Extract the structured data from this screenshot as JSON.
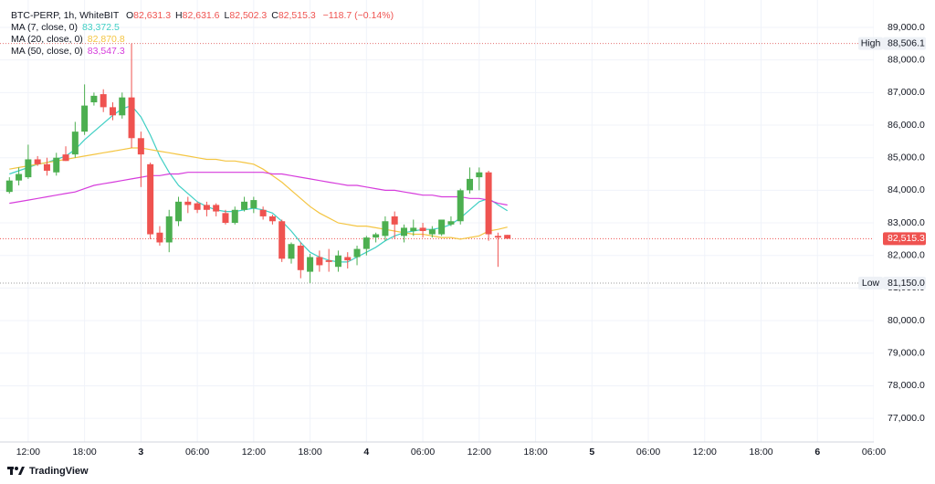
{
  "chart_data": {
    "type": "candlestick",
    "title": "BTC-PERP, 1h, WhiteBIT",
    "ohlc_legend": [
      {
        "label": "O",
        "value": "82,631.3"
      },
      {
        "label": "H",
        "value": "82,631.6"
      },
      {
        "label": "L",
        "value": "82,502.3"
      },
      {
        "label": "C",
        "value": "82,515.3"
      }
    ],
    "change": "−118.7 (−0.14%)",
    "up_color": "#4caf50",
    "down_color": "#ef5350",
    "x": [
      10,
      11,
      12,
      13,
      14,
      15,
      16,
      17,
      18,
      19,
      20,
      21,
      22,
      23,
      24,
      25,
      26,
      27,
      28,
      29,
      30,
      31,
      32,
      33,
      34,
      35,
      36,
      37,
      38,
      39,
      40,
      41,
      42,
      43,
      44,
      45,
      46,
      47,
      48,
      49,
      50,
      51,
      52,
      53,
      54,
      55,
      56,
      57,
      58,
      59,
      60,
      61,
      62,
      63
    ],
    "open": [
      83950,
      84300,
      84400,
      84950,
      84800,
      84550,
      85100,
      85100,
      85800,
      86700,
      86950,
      86550,
      86300,
      86850,
      85600,
      84800,
      82700,
      82400,
      83050,
      83650,
      83600,
      83550,
      83550,
      83300,
      83000,
      83400,
      83450,
      83400,
      83200,
      83050,
      81900,
      82300,
      81500,
      81950,
      81850,
      81650,
      81950,
      81950,
      82200,
      82550,
      82600,
      83200,
      82600,
      82750,
      82850,
      82650,
      82650,
      82950,
      83050,
      84000,
      84400,
      84550,
      82600,
      82631.3
    ],
    "high": [
      84400,
      84700,
      85400,
      85050,
      85000,
      85150,
      85350,
      86100,
      87250,
      87000,
      87100,
      86700,
      87000,
      88506.1,
      85800,
      84850,
      82900,
      83400,
      83800,
      83800,
      83650,
      83650,
      83600,
      83400,
      83500,
      83800,
      83800,
      83500,
      83250,
      83100,
      82400,
      82400,
      82050,
      82150,
      82200,
      82150,
      82100,
      82300,
      82600,
      82700,
      83200,
      83350,
      82950,
      83100,
      83000,
      82900,
      83100,
      83200,
      84050,
      84700,
      84700,
      84600,
      82700,
      82631.6
    ],
    "low": [
      83900,
      84150,
      84350,
      84750,
      84450,
      84450,
      84900,
      85000,
      85700,
      86600,
      86400,
      86150,
      86200,
      85300,
      84100,
      82500,
      82300,
      82100,
      82900,
      83300,
      83300,
      83200,
      83200,
      82950,
      82950,
      83350,
      83300,
      83100,
      82950,
      81800,
      81750,
      81300,
      81150,
      81500,
      81500,
      81500,
      81600,
      81700,
      82000,
      82400,
      82450,
      82500,
      82400,
      82600,
      82550,
      82550,
      82600,
      82900,
      82950,
      83900,
      84000,
      82450,
      81650,
      82502.3
    ],
    "close": [
      84300,
      84500,
      84950,
      84800,
      84600,
      85000,
      84900,
      85800,
      86600,
      86900,
      86550,
      86300,
      86850,
      85600,
      85100,
      82650,
      82400,
      83200,
      83650,
      83550,
      83400,
      83400,
      83350,
      83000,
      83400,
      83650,
      83700,
      83200,
      83050,
      81900,
      82350,
      81550,
      81950,
      81700,
      81800,
      82000,
      81850,
      82200,
      82550,
      82650,
      83050,
      82950,
      82850,
      82850,
      82750,
      82800,
      83100,
      83050,
      84000,
      84350,
      84550,
      82650,
      82550,
      82515.3
    ],
    "series": [
      {
        "name": "MA (7, close, 0)",
        "last_label": "83,372.5",
        "color": "#3fcfc4",
        "values": [
          84500,
          84600,
          84700,
          84800,
          84850,
          84950,
          85050,
          85250,
          85550,
          85800,
          86050,
          86300,
          86500,
          86600,
          86250,
          85700,
          85050,
          84550,
          84150,
          83900,
          83650,
          83500,
          83400,
          83350,
          83350,
          83400,
          83450,
          83400,
          83300,
          83050,
          82750,
          82400,
          82100,
          81950,
          81850,
          81800,
          81800,
          81950,
          82100,
          82250,
          82450,
          82600,
          82700,
          82750,
          82800,
          82800,
          82850,
          82950,
          83150,
          83400,
          83650,
          83750,
          83550,
          83372.5
        ]
      },
      {
        "name": "MA (20, close, 0)",
        "last_label": "82,870.8",
        "color": "#f4c542",
        "values": [
          84650,
          84700,
          84750,
          84800,
          84850,
          84900,
          84950,
          85000,
          85050,
          85100,
          85150,
          85200,
          85250,
          85300,
          85300,
          85250,
          85200,
          85150,
          85100,
          85050,
          85000,
          84950,
          84950,
          84900,
          84900,
          84850,
          84800,
          84650,
          84450,
          84250,
          84000,
          83750,
          83500,
          83300,
          83150,
          83000,
          82950,
          82900,
          82900,
          82850,
          82800,
          82750,
          82700,
          82650,
          82650,
          82600,
          82550,
          82550,
          82500,
          82550,
          82600,
          82750,
          82800,
          82870.8
        ]
      },
      {
        "name": "MA (50, close, 0)",
        "last_label": "83,547.3",
        "color": "#d63cdc",
        "values": [
          83600,
          83650,
          83700,
          83750,
          83800,
          83850,
          83900,
          83950,
          84050,
          84150,
          84200,
          84250,
          84300,
          84350,
          84400,
          84450,
          84450,
          84500,
          84500,
          84550,
          84550,
          84550,
          84550,
          84550,
          84550,
          84550,
          84550,
          84550,
          84500,
          84500,
          84450,
          84400,
          84350,
          84300,
          84250,
          84200,
          84150,
          84150,
          84100,
          84050,
          84000,
          84000,
          83950,
          83900,
          83850,
          83850,
          83800,
          83800,
          83800,
          83750,
          83750,
          83700,
          83600,
          83547.3
        ]
      }
    ],
    "xlim": [
      9,
      102
    ],
    "xticks": [
      {
        "value": 12,
        "label": "12:00"
      },
      {
        "value": 18,
        "label": "18:00"
      },
      {
        "value": 24,
        "label": "3"
      },
      {
        "value": 30,
        "label": "06:00"
      },
      {
        "value": 36,
        "label": "12:00"
      },
      {
        "value": 42,
        "label": "18:00"
      },
      {
        "value": 48,
        "label": "4"
      },
      {
        "value": 54,
        "label": "06:00"
      },
      {
        "value": 60,
        "label": "12:00"
      },
      {
        "value": 66,
        "label": "18:00"
      },
      {
        "value": 72,
        "label": "5"
      },
      {
        "value": 78,
        "label": "06:00"
      },
      {
        "value": 84,
        "label": "12:00"
      },
      {
        "value": 90,
        "label": "18:00"
      },
      {
        "value": 96,
        "label": "6"
      },
      {
        "value": 102,
        "label": "06:00"
      }
    ],
    "ylim": [
      76275,
      89840
    ],
    "yticks": [
      {
        "value": 77000,
        "label": "77,000.0"
      },
      {
        "value": 78000,
        "label": "78,000.0"
      },
      {
        "value": 79000,
        "label": "79,000.0"
      },
      {
        "value": 80000,
        "label": "80,000.0"
      },
      {
        "value": 81000,
        "label": "81,000.0"
      },
      {
        "value": 82000,
        "label": "82,000.0"
      },
      {
        "value": 83000,
        "label": "83,000.0"
      },
      {
        "value": 84000,
        "label": "84,000.0"
      },
      {
        "value": 85000,
        "label": "85,000.0"
      },
      {
        "value": 86000,
        "label": "86,000.0"
      },
      {
        "value": 87000,
        "label": "87,000.0"
      },
      {
        "value": 88000,
        "label": "88,000.0"
      },
      {
        "value": 89000,
        "label": "89,000.0"
      }
    ],
    "grid": true,
    "price_lines": [
      {
        "name": "High",
        "value": 88506.1,
        "label": "88,506.1",
        "color": "#e57373"
      },
      {
        "name": "Low",
        "value": 81150.0,
        "label": "81,150.0",
        "color": "#9e9e9e"
      }
    ],
    "last_price": {
      "value": 82515.3,
      "label": "82,515.3",
      "color": "#ef5350"
    }
  },
  "branding": "TradingView"
}
